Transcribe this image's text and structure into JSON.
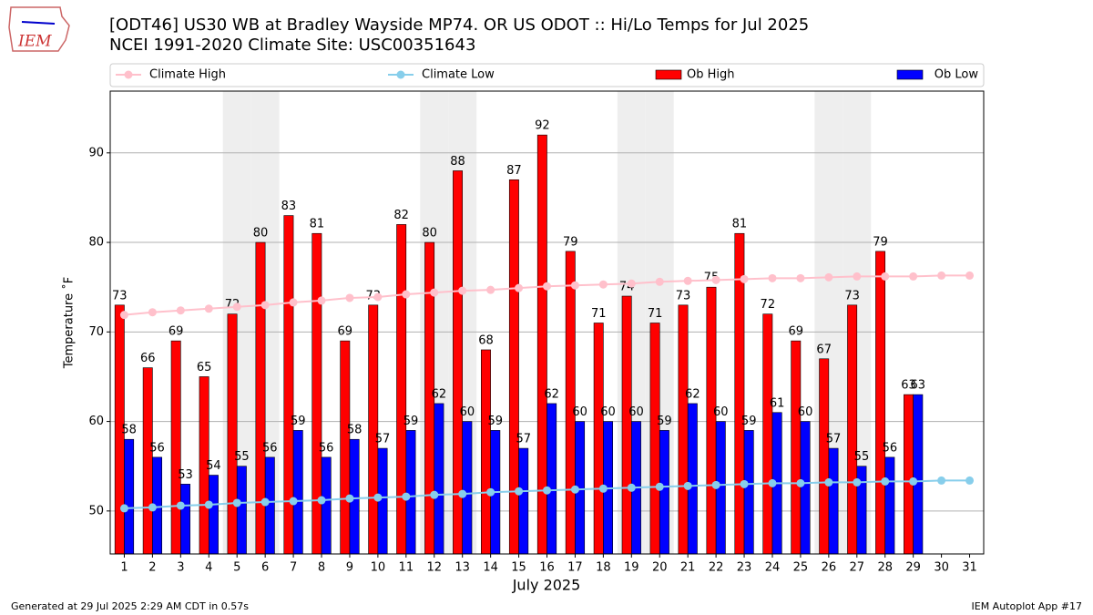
{
  "chart_data": {
    "type": "bar_line",
    "title": "[ODT46] US30 WB at Bradley Wayside MP74. OR US ODOT :: Hi/Lo Temps for Jul 2025",
    "subtitle": "NCEI 1991-2020 Climate Site: USC00351643",
    "xlabel": "July 2025",
    "ylabel": "Temperature $^\\circ$F",
    "footer_left": "Generated at 29 Jul 2025 2:29 AM CDT in 0.57s",
    "footer_right": "IEM Autoplot App #17",
    "logo_text": "IEM",
    "x": [
      1,
      2,
      3,
      4,
      5,
      6,
      7,
      8,
      9,
      10,
      11,
      12,
      13,
      14,
      15,
      16,
      17,
      18,
      19,
      20,
      21,
      22,
      23,
      24,
      25,
      26,
      27,
      28,
      29,
      30,
      31
    ],
    "xlim": [
      0.5,
      31.5
    ],
    "xticks": [
      1,
      2,
      3,
      4,
      5,
      6,
      7,
      8,
      9,
      10,
      11,
      12,
      13,
      14,
      15,
      16,
      17,
      18,
      19,
      20,
      21,
      22,
      23,
      24,
      25,
      26,
      27,
      28,
      29,
      30,
      31
    ],
    "ylim": [
      45.2,
      96.9
    ],
    "yticks": [
      50,
      60,
      70,
      80,
      90
    ],
    "grid": true,
    "shaded_days": [
      5,
      6,
      12,
      13,
      19,
      20,
      26,
      27
    ],
    "series": [
      {
        "name": "Climate High",
        "kind": "line",
        "color": "#ffc0cb",
        "values": [
          71.9,
          72.2,
          72.4,
          72.6,
          72.8,
          73.0,
          73.3,
          73.5,
          73.8,
          73.9,
          74.2,
          74.4,
          74.6,
          74.7,
          74.9,
          75.1,
          75.2,
          75.3,
          75.4,
          75.6,
          75.7,
          75.8,
          75.9,
          76.0,
          76.0,
          76.1,
          76.2,
          76.2,
          76.2,
          76.3,
          76.3
        ]
      },
      {
        "name": "Climate Low",
        "kind": "line",
        "color": "#87ceeb",
        "values": [
          50.3,
          50.4,
          50.6,
          50.7,
          50.9,
          51.0,
          51.1,
          51.2,
          51.4,
          51.5,
          51.6,
          51.8,
          51.9,
          52.1,
          52.2,
          52.3,
          52.4,
          52.5,
          52.6,
          52.7,
          52.8,
          52.9,
          53.0,
          53.1,
          53.1,
          53.2,
          53.2,
          53.3,
          53.3,
          53.4,
          53.4
        ]
      },
      {
        "name": "Ob High",
        "kind": "bar",
        "color": "#ff0000",
        "values": [
          73,
          66,
          69,
          65,
          72,
          80,
          83,
          81,
          69,
          73,
          82,
          80,
          88,
          68,
          87,
          92,
          79,
          71,
          74,
          71,
          73,
          75,
          81,
          72,
          69,
          67,
          73,
          79,
          63,
          null,
          null
        ]
      },
      {
        "name": "Ob Low",
        "kind": "bar",
        "color": "#0000ff",
        "values": [
          58,
          56,
          53,
          54,
          55,
          56,
          59,
          56,
          58,
          57,
          59,
          62,
          60,
          59,
          57,
          62,
          60,
          60,
          60,
          59,
          62,
          60,
          59,
          61,
          60,
          57,
          55,
          56,
          63,
          null,
          null
        ]
      }
    ]
  }
}
